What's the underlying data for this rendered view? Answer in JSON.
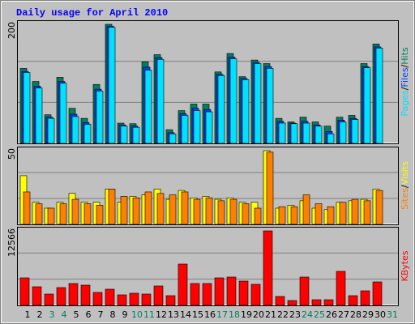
{
  "title": "Daily usage for April 2010",
  "chart_data": [
    {
      "type": "bar",
      "ylim": [
        0,
        200
      ],
      "yticks": [
        200
      ],
      "grid_divisions": 3,
      "legend_separator": "/",
      "series": [
        {
          "name": "Hits",
          "color": "#00805c",
          "values": [
            126,
            104,
            48,
            111,
            59,
            42,
            99,
            200,
            34,
            33,
            137,
            149,
            23,
            55,
            66,
            66,
            120,
            151,
            112,
            140,
            134,
            42,
            36,
            44,
            36,
            29,
            44,
            47,
            134,
            167,
            0
          ]
        },
        {
          "name": "Files",
          "color": "#0040ff",
          "values": [
            121,
            96,
            44,
            104,
            49,
            35,
            91,
            197,
            31,
            29,
            128,
            144,
            18,
            50,
            59,
            57,
            116,
            145,
            109,
            136,
            129,
            37,
            34,
            37,
            31,
            20,
            39,
            42,
            129,
            162,
            0
          ]
        },
        {
          "name": "Pages",
          "color": "#00e0ff",
          "values": [
            119,
            93,
            42,
            101,
            45,
            32,
            88,
            195,
            29,
            27,
            123,
            141,
            16,
            47,
            55,
            53,
            114,
            142,
            107,
            134,
            126,
            34,
            33,
            34,
            29,
            16,
            36,
            40,
            127,
            160,
            0
          ]
        }
      ]
    },
    {
      "type": "bar",
      "ylim": [
        0,
        50
      ],
      "yticks": [
        50
      ],
      "grid_divisions": 3,
      "legend_separator": "/",
      "series": [
        {
          "name": "Visits",
          "color": "#ffff00",
          "values": [
            33,
            15,
            11,
            15,
            21,
            15,
            15,
            24,
            15,
            19,
            20,
            24,
            17,
            23,
            18,
            19,
            17,
            18,
            15,
            15,
            50,
            11,
            13,
            16,
            11,
            10,
            15,
            16,
            17,
            24,
            0
          ]
        },
        {
          "name": "Sites",
          "color": "#ff8000",
          "values": [
            22,
            14,
            11,
            14,
            17,
            14,
            13,
            24,
            19,
            18,
            22,
            21,
            20,
            22,
            17,
            18,
            16,
            17,
            14,
            11,
            49,
            12,
            12,
            20,
            14,
            12,
            15,
            17,
            16,
            23,
            0
          ]
        }
      ]
    },
    {
      "type": "bar",
      "ylim": [
        0,
        12566
      ],
      "yticks": [
        12566
      ],
      "grid_divisions": 3,
      "categories": [
        "1",
        "2",
        "3",
        "4",
        "5",
        "6",
        "7",
        "8",
        "9",
        "10",
        "11",
        "12",
        "13",
        "14",
        "15",
        "16",
        "17",
        "18",
        "19",
        "20",
        "21",
        "22",
        "23",
        "24",
        "25",
        "26",
        "27",
        "28",
        "29",
        "30",
        "31"
      ],
      "category_colors": [
        "#000000",
        "#000000",
        "#00805c",
        "#00805c",
        "#000000",
        "#000000",
        "#000000",
        "#000000",
        "#000000",
        "#00805c",
        "#00805c",
        "#000000",
        "#000000",
        "#000000",
        "#000000",
        "#000000",
        "#00805c",
        "#00805c",
        "#000000",
        "#000000",
        "#000000",
        "#000000",
        "#000000",
        "#00805c",
        "#00805c",
        "#000000",
        "#000000",
        "#000000",
        "#000000",
        "#000000",
        "#00805c"
      ],
      "series": [
        {
          "name": "KBytes",
          "color": "#ff0000",
          "values": [
            4644,
            3142,
            1912,
            3005,
            3688,
            3415,
            2186,
            2732,
            1776,
            2049,
            1912,
            3278,
            1639,
            6967,
            3688,
            3688,
            4644,
            4781,
            4098,
            3552,
            12566,
            1503,
            820,
            4781,
            956,
            956,
            5737,
            1639,
            2459,
            3961,
            0
          ]
        }
      ]
    }
  ]
}
